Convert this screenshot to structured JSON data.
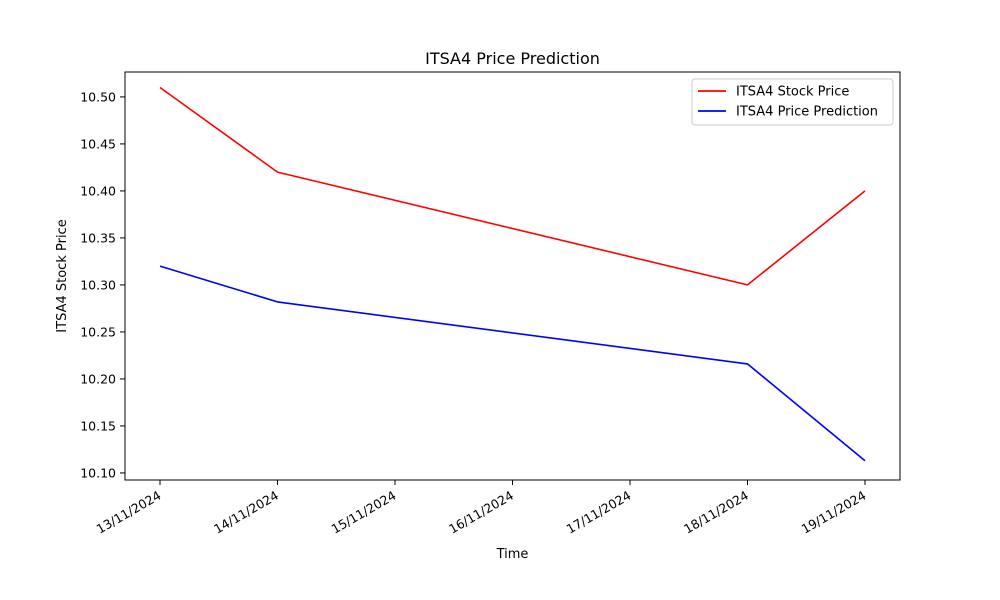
{
  "chart_data": {
    "type": "line",
    "title": "ITSA4 Price Prediction",
    "xlabel": "Time",
    "ylabel": "ITSA4 Stock Price",
    "x": [
      "13/11/2024",
      "14/11/2024",
      "15/11/2024",
      "16/11/2024",
      "17/11/2024",
      "18/11/2024",
      "19/11/2024"
    ],
    "x_ticks": [
      "13/11/2024",
      "14/11/2024",
      "15/11/2024",
      "16/11/2024",
      "17/11/2024",
      "18/11/2024",
      "19/11/2024"
    ],
    "y_ticks": [
      "10.10",
      "10.15",
      "10.20",
      "10.25",
      "10.30",
      "10.35",
      "10.40",
      "10.45",
      "10.50"
    ],
    "ylim": [
      10.0925,
      10.5265
    ],
    "grid": false,
    "legend_position": "top-right",
    "series": [
      {
        "name": "ITSA4 Stock Price",
        "color": "#ff0000",
        "points": [
          {
            "x": "13/11/2024",
            "y": 10.51
          },
          {
            "x": "14/11/2024",
            "y": 10.42
          },
          {
            "x": "18/11/2024",
            "y": 10.3
          },
          {
            "x": "19/11/2024",
            "y": 10.4
          }
        ]
      },
      {
        "name": "ITSA4 Price Prediction",
        "color": "#0000ff",
        "points": [
          {
            "x": "13/11/2024",
            "y": 10.32
          },
          {
            "x": "14/11/2024",
            "y": 10.282
          },
          {
            "x": "18/11/2024",
            "y": 10.216
          },
          {
            "x": "19/11/2024",
            "y": 10.113
          }
        ]
      }
    ]
  }
}
